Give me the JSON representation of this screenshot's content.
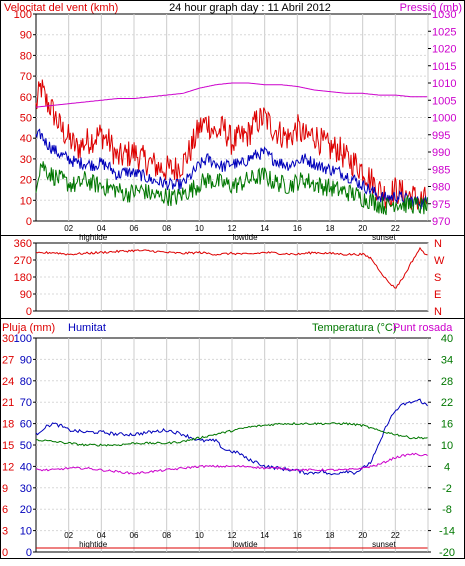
{
  "chart_data": [
    {
      "type": "line",
      "title": "24 hour graph day : 11 Abril 2012",
      "left_label": "Velocitat del vent (kmh)",
      "right_label": "Pressió (mb)",
      "left_ticks": [
        "100",
        "90",
        "80",
        "70",
        "60",
        "50",
        "40",
        "30",
        "20",
        "10",
        "0"
      ],
      "right_ticks": [
        "1030",
        "1025",
        "1020",
        "1015",
        "1010",
        "1005",
        "1000",
        "995",
        "990",
        "985",
        "980",
        "975",
        "970"
      ],
      "ylim_left": [
        0,
        100
      ],
      "ylim_right": [
        970,
        1030
      ],
      "x_ticks": [
        "02",
        "04",
        "06",
        "08",
        "10",
        "12",
        "14",
        "16",
        "18",
        "20",
        "22",
        ""
      ],
      "x_annotations": [
        {
          "label": "hightide",
          "hour": 3.5
        },
        {
          "label": "lowtide",
          "hour": 12.8
        },
        {
          "label": "sunset",
          "hour": 21.3
        }
      ],
      "series": [
        {
          "name": "",
          "color": "#dd0000",
          "hours": [
            0,
            0.3,
            0.6,
            0.9,
            1.2,
            1.5,
            2,
            2.5,
            3,
            3.5,
            4,
            4.5,
            5,
            5.5,
            6,
            6.5,
            7,
            7.5,
            8,
            8.5,
            9,
            9.5,
            10,
            10.5,
            11,
            11.5,
            12,
            12.5,
            13,
            13.5,
            14,
            14.5,
            15,
            15.5,
            16,
            16.5,
            17,
            17.5,
            18,
            18.5,
            19,
            19.5,
            20,
            20.5,
            21,
            21.5,
            22,
            22.5,
            23,
            23.5,
            24
          ],
          "values": [
            55,
            65,
            58,
            55,
            50,
            45,
            40,
            35,
            38,
            40,
            42,
            38,
            30,
            32,
            33,
            30,
            28,
            26,
            25,
            25,
            28,
            35,
            45,
            48,
            42,
            45,
            38,
            40,
            42,
            48,
            50,
            45,
            42,
            40,
            45,
            40,
            42,
            38,
            35,
            35,
            30,
            28,
            25,
            20,
            15,
            12,
            15,
            13,
            12,
            10,
            10
          ]
        },
        {
          "name": "",
          "color": "#0000bb",
          "hours": [
            0,
            0.3,
            0.6,
            1,
            1.5,
            2,
            2.5,
            3,
            3.5,
            4,
            4.5,
            5,
            5.5,
            6,
            6.5,
            7,
            7.5,
            8,
            8.5,
            9,
            9.5,
            10,
            10.5,
            11,
            11.5,
            12,
            12.5,
            13,
            13.5,
            14,
            14.5,
            15,
            15.5,
            16,
            16.5,
            17,
            17.5,
            18,
            18.5,
            19,
            19.5,
            20,
            20.5,
            21,
            21.5,
            22,
            22.5,
            23,
            23.5,
            24
          ],
          "values": [
            40,
            42,
            38,
            35,
            32,
            30,
            28,
            28,
            27,
            28,
            26,
            22,
            24,
            23,
            22,
            20,
            19,
            18,
            17,
            18,
            22,
            27,
            30,
            28,
            26,
            28,
            27,
            30,
            32,
            33,
            30,
            28,
            27,
            29,
            30,
            28,
            26,
            25,
            24,
            22,
            20,
            17,
            15,
            12,
            11,
            12,
            11,
            10,
            9,
            9
          ]
        },
        {
          "name": "",
          "color": "#007700",
          "hours": [
            0,
            0.3,
            0.6,
            1,
            1.5,
            2,
            2.5,
            3,
            3.5,
            4,
            4.5,
            5,
            5.5,
            6,
            6.5,
            7,
            7.5,
            8,
            8.5,
            9,
            9.5,
            10,
            10.5,
            11,
            11.5,
            12,
            12.5,
            13,
            13.5,
            14,
            14.5,
            15,
            15.5,
            16,
            16.5,
            17,
            17.5,
            18,
            18.5,
            19,
            19.5,
            20,
            20.5,
            21,
            21.5,
            22,
            22.5,
            23,
            23.5,
            24
          ],
          "values": [
            18,
            28,
            25,
            22,
            20,
            18,
            17,
            20,
            18,
            17,
            16,
            15,
            13,
            14,
            15,
            13,
            12,
            12,
            11,
            13,
            15,
            18,
            20,
            19,
            18,
            17,
            18,
            20,
            21,
            22,
            19,
            18,
            17,
            19,
            20,
            18,
            17,
            16,
            15,
            14,
            13,
            11,
            10,
            8,
            7,
            9,
            8,
            8,
            7,
            7
          ]
        },
        {
          "name": "",
          "color": "#cc00cc",
          "axis": "right",
          "hours": [
            0,
            1,
            2,
            3,
            4,
            5,
            6,
            7,
            8,
            9,
            10,
            11,
            12,
            13,
            14,
            15,
            16,
            17,
            18,
            19,
            20,
            21,
            22,
            23,
            24
          ],
          "values": [
            1003,
            1003.5,
            1004,
            1004.5,
            1005,
            1005.5,
            1005.5,
            1006,
            1006.5,
            1007,
            1008.5,
            1009.5,
            1010,
            1010,
            1009.5,
            1009.5,
            1009,
            1008,
            1007.5,
            1007,
            1007,
            1006.5,
            1006.5,
            1006,
            1006
          ]
        }
      ]
    },
    {
      "type": "line",
      "left_ticks": [
        "360",
        "270",
        "180",
        "90",
        "0"
      ],
      "right_ticks": [
        "N",
        "W",
        "S",
        "E",
        "N"
      ],
      "ylim": [
        0,
        360
      ],
      "series": [
        {
          "name": "",
          "color": "#dd0000",
          "hours": [
            0,
            1,
            2,
            3,
            4,
            5,
            6,
            7,
            8,
            9,
            10,
            11,
            12,
            13,
            14,
            15,
            16,
            17,
            18,
            19,
            20,
            20.5,
            21,
            21.5,
            22,
            22.5,
            23,
            23.5,
            24
          ],
          "values": [
            305,
            310,
            300,
            305,
            310,
            315,
            320,
            318,
            310,
            305,
            310,
            300,
            305,
            300,
            310,
            305,
            300,
            310,
            305,
            300,
            300,
            280,
            220,
            160,
            120,
            180,
            260,
            330,
            290
          ]
        }
      ]
    },
    {
      "type": "line",
      "label_rain": "Pluja (mm)",
      "label_humidity": "Humitat",
      "label_temp": "Temperatura (°C)",
      "label_dew": "Punt rosada",
      "rain_ticks": [
        "30",
        "27",
        "24",
        "21",
        "18",
        "15",
        "12",
        "9",
        "6",
        "3",
        "0"
      ],
      "humidity_ticks": [
        "100",
        "90",
        "80",
        "70",
        "60",
        "50",
        "40",
        "30",
        "20",
        "10",
        "0"
      ],
      "temp_ticks": [
        "40",
        "34",
        "28",
        "22",
        "16",
        "10",
        "4",
        "-2",
        "-8",
        "-14",
        "-20"
      ],
      "ylim_humidity": [
        0,
        100
      ],
      "ylim_temp": [
        -20,
        40
      ],
      "x_ticks": [
        "02",
        "04",
        "06",
        "08",
        "10",
        "12",
        "14",
        "16",
        "18",
        "20",
        "22",
        ""
      ],
      "x_annotations": [
        {
          "label": "hightide",
          "hour": 3.5
        },
        {
          "label": "lowtide",
          "hour": 12.8
        },
        {
          "label": "sunset",
          "hour": 21.3
        }
      ],
      "series": [
        {
          "name": "Humitat",
          "color": "#0000bb",
          "axis": "humidity",
          "hours": [
            0,
            0.5,
            1,
            1.5,
            2,
            3,
            4,
            5,
            6,
            7,
            8,
            9,
            10,
            11,
            11.5,
            12,
            12.5,
            13,
            13.5,
            14,
            15,
            16,
            16.5,
            17,
            17.5,
            18,
            18.5,
            19,
            19.5,
            20,
            20.5,
            21,
            21.5,
            22,
            22.5,
            23,
            23.5,
            24
          ],
          "values": [
            55,
            58,
            60,
            59,
            57,
            56,
            56,
            55,
            55,
            56,
            57,
            55,
            52,
            52,
            48,
            47,
            46,
            43,
            42,
            40,
            39,
            38,
            37,
            37,
            38,
            36,
            37,
            38,
            37,
            39,
            42,
            50,
            60,
            66,
            69,
            70,
            71,
            68
          ]
        },
        {
          "name": "Temperatura (°C)",
          "color": "#007700",
          "axis": "temp",
          "hours": [
            0,
            1,
            2,
            3,
            4,
            5,
            6,
            7,
            8,
            9,
            10,
            11,
            12,
            13,
            14,
            15,
            16,
            17,
            18,
            19,
            20,
            21,
            22,
            23,
            24
          ],
          "values": [
            11.5,
            11,
            10.5,
            10,
            10,
            10,
            10.5,
            10.5,
            10.5,
            11,
            12,
            13,
            14,
            15,
            15.5,
            16,
            16,
            16,
            16,
            16,
            15.5,
            14,
            13,
            12,
            12
          ]
        },
        {
          "name": "Punt rosada",
          "color": "#cc00cc",
          "axis": "temp",
          "hours": [
            0,
            1,
            2,
            3,
            4,
            5,
            6,
            7,
            8,
            9,
            10,
            11,
            12,
            13,
            14,
            15,
            16,
            17,
            18,
            19,
            20,
            21,
            22,
            23,
            24
          ],
          "values": [
            3,
            3,
            3.5,
            3.5,
            3,
            2.5,
            2,
            2.5,
            3,
            3.5,
            4,
            4,
            4,
            4,
            3.5,
            3.5,
            3,
            3,
            3,
            3,
            3.5,
            4.5,
            6.5,
            7.5,
            7
          ]
        },
        {
          "name": "Pluja (mm)",
          "color": "#dd0000",
          "axis": "rain",
          "hours": [
            0,
            24
          ],
          "values": [
            0,
            0
          ]
        }
      ]
    }
  ]
}
